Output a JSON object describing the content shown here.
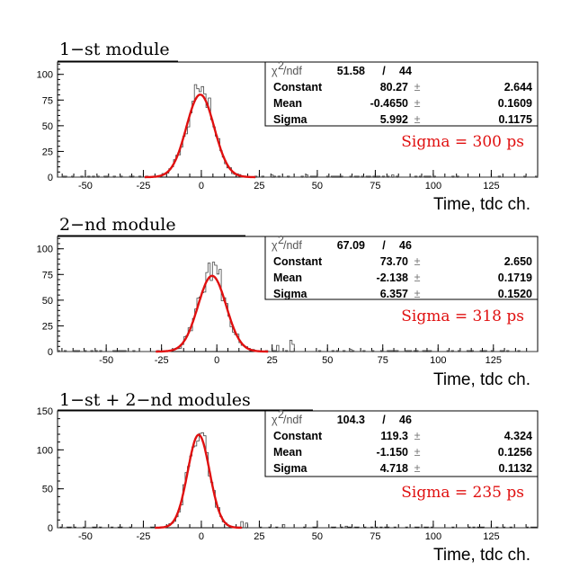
{
  "colors": {
    "fit": "#e01010",
    "hist": "#444444",
    "sigma_text": "#e01010"
  },
  "chart_data": [
    {
      "type": "histogram",
      "title": "1−st  module",
      "xlabel": "Time,  tdc  ch.",
      "xlim": [
        -62,
        145
      ],
      "ylim": [
        0,
        112
      ],
      "x_ticks": [
        "-50",
        "-25",
        "0",
        "25",
        "50",
        "75",
        "100",
        "125"
      ],
      "y_ticks": [
        "0",
        "25",
        "50",
        "75",
        "100"
      ],
      "fit": {
        "type": "gaussian",
        "constant": 80.27,
        "mean": -0.465,
        "sigma": 5.992
      },
      "stats": {
        "chi2_label": "/ndf",
        "chi2": "51.58",
        "sep": "/",
        "ndf": "44",
        "rows": [
          {
            "label": "Constant",
            "value": "80.27",
            "pm": "±",
            "err": "2.644"
          },
          {
            "label": "Mean",
            "value": "-0.4650",
            "pm": "±",
            "err": "0.1609"
          },
          {
            "label": "Sigma",
            "value": "5.992",
            "pm": "±",
            "err": "0.1175"
          }
        ]
      },
      "annotation": "Sigma = 300 ps",
      "hist_peaks": [
        {
          "x": -3.0,
          "y": 90
        },
        {
          "x": -2.0,
          "y": 86
        },
        {
          "x": 1.0,
          "y": 81
        },
        {
          "x": 3.0,
          "y": 77
        }
      ],
      "hist_noise": [
        {
          "x": 30,
          "y": 2
        },
        {
          "x": 45,
          "y": 2
        },
        {
          "x": 60,
          "y": 1
        },
        {
          "x": 82,
          "y": 2
        },
        {
          "x": 110,
          "y": 1
        }
      ]
    },
    {
      "type": "histogram",
      "title": "2−nd  module",
      "xlabel": "Time,  tdc  ch.",
      "xlim": [
        -72,
        145
      ],
      "ylim": [
        0,
        112
      ],
      "x_ticks": [
        "-50",
        "-25",
        "0",
        "25",
        "50",
        "75",
        "100",
        "125"
      ],
      "y_ticks": [
        "0",
        "25",
        "50",
        "75",
        "100"
      ],
      "fit": {
        "type": "gaussian",
        "constant": 73.7,
        "mean": -2.138,
        "sigma": 6.357
      },
      "stats": {
        "chi2_label": "/ndf",
        "chi2": "67.09",
        "sep": "/",
        "ndf": "46",
        "rows": [
          {
            "label": "Constant",
            "value": "73.70",
            "pm": "±",
            "err": "2.650"
          },
          {
            "label": "Mean",
            "value": "-2.138",
            "pm": "±",
            "err": "0.1719"
          },
          {
            "label": "Sigma",
            "value": "6.357",
            "pm": "±",
            "err": "0.1520"
          }
        ]
      },
      "annotation": "Sigma = 318 ps",
      "hist_peaks": [
        {
          "x": -4.0,
          "y": 86
        },
        {
          "x": -2.0,
          "y": 87
        },
        {
          "x": -1.0,
          "y": 84
        },
        {
          "x": 1.0,
          "y": 80
        }
      ],
      "hist_noise": [
        {
          "x": 27,
          "y": 6
        },
        {
          "x": 33,
          "y": 11
        },
        {
          "x": 34,
          "y": 7
        },
        {
          "x": 60,
          "y": 2
        }
      ]
    },
    {
      "type": "histogram",
      "title": "1−st  +  2−nd  modules",
      "xlabel": "Time,  tdc  ch.",
      "xlim": [
        -62,
        145
      ],
      "ylim": [
        0,
        150
      ],
      "x_ticks": [
        "-50",
        "-25",
        "0",
        "25",
        "50",
        "75",
        "100",
        "125"
      ],
      "y_ticks": [
        "0",
        "50",
        "100",
        "150"
      ],
      "fit": {
        "type": "gaussian",
        "constant": 119.3,
        "mean": -1.15,
        "sigma": 4.718
      },
      "stats": {
        "chi2_label": "/ndf",
        "chi2": "104.3",
        "sep": "/",
        "ndf": "46",
        "rows": [
          {
            "label": "Constant",
            "value": "119.3",
            "pm": "±",
            "err": "4.324"
          },
          {
            "label": "Mean",
            "value": "-1.150",
            "pm": "±",
            "err": "0.1256"
          },
          {
            "label": "Sigma",
            "value": "4.718",
            "pm": "±",
            "err": "0.1132"
          }
        ]
      },
      "annotation": "Sigma = 235 ps",
      "hist_peaks": [
        {
          "x": -1.0,
          "y": 121
        },
        {
          "x": 0.0,
          "y": 122
        },
        {
          "x": 1.0,
          "y": 118
        }
      ],
      "hist_noise": [
        {
          "x": 17,
          "y": 8
        },
        {
          "x": 19,
          "y": 6
        },
        {
          "x": 35,
          "y": 4
        },
        {
          "x": 62,
          "y": 2
        }
      ]
    }
  ]
}
